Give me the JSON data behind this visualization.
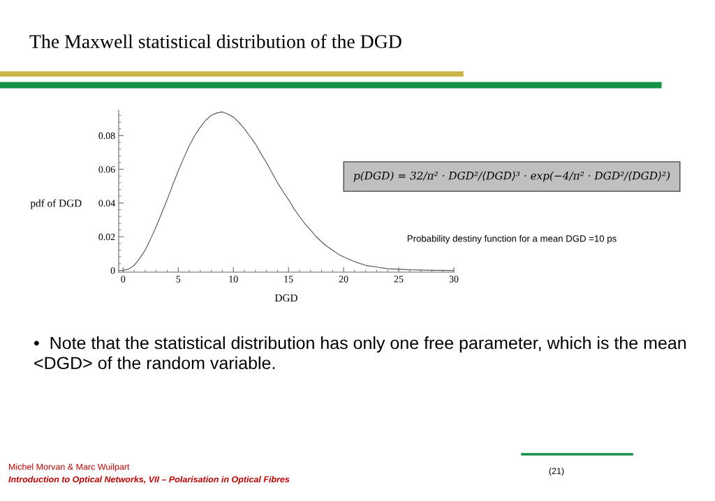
{
  "chart_data": {
    "type": "line",
    "title": "The Maxwell statistical distribution of the DGD",
    "xlabel": "DGD",
    "ylabel": "pdf of DGD",
    "x": [
      0,
      0.5,
      1,
      1.5,
      2,
      2.5,
      3,
      3.5,
      4,
      4.5,
      5,
      5.5,
      6,
      6.5,
      7,
      7.5,
      8,
      8.5,
      9,
      9.5,
      10,
      10.5,
      11,
      11.5,
      12,
      12.5,
      13,
      13.5,
      14,
      14.5,
      15,
      15.5,
      16,
      16.5,
      17,
      17.5,
      18,
      18.5,
      19,
      19.5,
      20,
      21,
      22,
      23,
      24,
      25,
      26,
      28,
      30
    ],
    "series": [
      {
        "color": "#555555",
        "values": [
          0,
          0.0008,
          0.003,
          0.0071,
          0.012,
          0.0187,
          0.026,
          0.034,
          0.042,
          0.0507,
          0.059,
          0.0667,
          0.074,
          0.08,
          0.085,
          0.0891,
          0.092,
          0.0934,
          0.094,
          0.0927,
          0.091,
          0.0878,
          0.084,
          0.0796,
          0.075,
          0.0693,
          0.064,
          0.058,
          0.052,
          0.0469,
          0.042,
          0.0365,
          0.032,
          0.0276,
          0.024,
          0.0201,
          0.017,
          0.0142,
          0.012,
          0.0097,
          0.008,
          0.0052,
          0.003,
          0.002,
          0.001,
          0.0007,
          0.0004,
          0.0001,
          0.0
        ]
      }
    ],
    "xlim": [
      -0.4,
      30
    ],
    "ylim": [
      -0.001,
      0.095
    ],
    "xticks": [
      0,
      5,
      10,
      15,
      20,
      25,
      30
    ],
    "yticks": [
      0,
      0.02,
      0.04,
      0.06,
      0.08
    ],
    "grid": false,
    "legend": false,
    "marker": "none",
    "line_style": "solid",
    "annotations": [
      "p(DGD) = 32/π² · DGD²/⟨DGD⟩³ · exp(−4/π² · DGD²/⟨DGD⟩²)",
      "Probability destiny function for a mean DGD =10 ps",
      "•  Note that the statistical distribution has only one free parameter, which is the mean <DGD> of the random variable.",
      "Michel Morvan & Marc Wuilpart",
      "Introduction to Optical Networks, VII – Polarisation in Optical Fibres",
      "(21)"
    ]
  }
}
